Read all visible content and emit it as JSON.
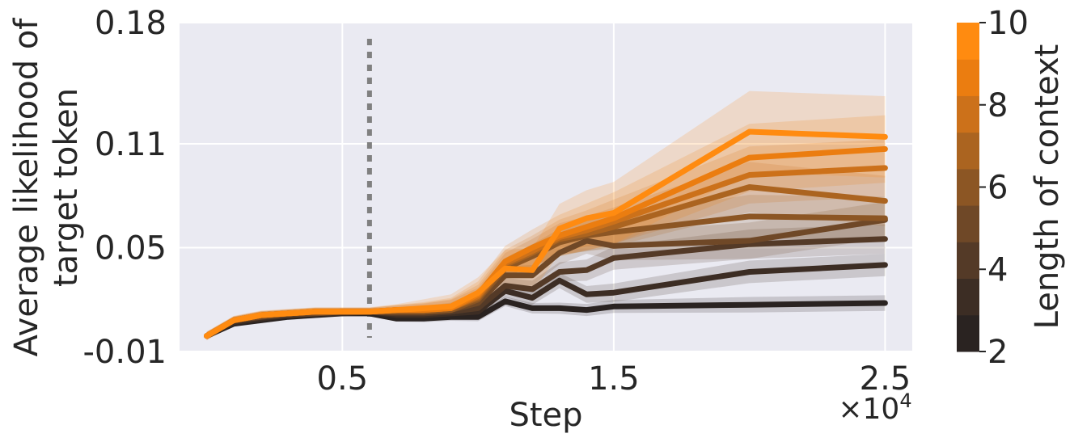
{
  "chart_data": {
    "type": "line",
    "xlabel": "Step",
    "x_offset_label": "×10",
    "x_offset_exponent": "4",
    "ylabel_line1": "Average likelihood of",
    "ylabel_line2": "target token",
    "xlim": [
      -0.1,
      2.6
    ],
    "ylim": [
      -0.01,
      0.18
    ],
    "xticks": [
      0.5,
      1.5,
      2.5
    ],
    "xtick_labels": [
      "0.5",
      "1.5",
      "2.5"
    ],
    "yticks": [
      -0.01,
      0.05,
      0.11,
      0.18
    ],
    "ytick_labels": [
      "-0.01",
      "0.05",
      "0.11",
      "0.18"
    ],
    "vline_x": 0.6,
    "grid": true,
    "background": "#eaeaf2",
    "colorbar": {
      "label": "Length of context",
      "range": [
        2,
        10
      ],
      "ticks": [
        2,
        4,
        6,
        8,
        10
      ],
      "tick_labels": [
        "2",
        "4",
        "6",
        "8",
        "10"
      ],
      "colors": [
        "#2a2321",
        "#3c2d24",
        "#543a27",
        "#6f4827",
        "#8c5624",
        "#ab6420",
        "#cc711a",
        "#eb7d10",
        "#ff8b10"
      ]
    },
    "x": [
      0,
      0.1,
      0.2,
      0.3,
      0.4,
      0.5,
      0.6,
      0.7,
      0.8,
      0.9,
      1.0,
      1.1,
      1.2,
      1.3,
      1.4,
      1.5,
      2.0,
      2.5
    ],
    "series": [
      {
        "context": 2,
        "color": "#2a2321",
        "values": [
          -0.001,
          0.006,
          0.008,
          0.01,
          0.011,
          0.012,
          0.012,
          0.009,
          0.009,
          0.01,
          0.01,
          0.019,
          0.015,
          0.015,
          0.014,
          0.016,
          0.017,
          0.018
        ],
        "band": 0.003
      },
      {
        "context": 3,
        "color": "#3c2d24",
        "values": [
          -0.001,
          0.007,
          0.009,
          0.011,
          0.012,
          0.012,
          0.013,
          0.011,
          0.011,
          0.012,
          0.013,
          0.025,
          0.021,
          0.031,
          0.023,
          0.024,
          0.036,
          0.04
        ],
        "band": 0.005
      },
      {
        "context": 4,
        "color": "#543a27",
        "values": [
          -0.001,
          0.008,
          0.01,
          0.011,
          0.012,
          0.013,
          0.013,
          0.012,
          0.012,
          0.013,
          0.015,
          0.028,
          0.026,
          0.036,
          0.037,
          0.044,
          0.052,
          0.055
        ],
        "band": 0.007
      },
      {
        "context": 5,
        "color": "#6f4827",
        "values": [
          -0.001,
          0.008,
          0.01,
          0.012,
          0.012,
          0.013,
          0.013,
          0.013,
          0.013,
          0.014,
          0.018,
          0.034,
          0.034,
          0.047,
          0.054,
          0.051,
          0.054,
          0.066
        ],
        "band": 0.009
      },
      {
        "context": 6,
        "color": "#8c5624",
        "values": [
          -0.001,
          0.008,
          0.011,
          0.012,
          0.013,
          0.013,
          0.013,
          0.013,
          0.013,
          0.014,
          0.02,
          0.038,
          0.045,
          0.053,
          0.057,
          0.059,
          0.068,
          0.067
        ],
        "band": 0.011
      },
      {
        "context": 7,
        "color": "#ab6420",
        "values": [
          -0.001,
          0.008,
          0.011,
          0.012,
          0.013,
          0.013,
          0.013,
          0.014,
          0.014,
          0.015,
          0.021,
          0.04,
          0.047,
          0.055,
          0.058,
          0.062,
          0.085,
          0.077
        ],
        "band": 0.013
      },
      {
        "context": 8,
        "color": "#cc711a",
        "values": [
          -0.001,
          0.008,
          0.011,
          0.012,
          0.013,
          0.013,
          0.013,
          0.014,
          0.014,
          0.015,
          0.022,
          0.041,
          0.048,
          0.056,
          0.06,
          0.065,
          0.092,
          0.096
        ],
        "band": 0.015
      },
      {
        "context": 9,
        "color": "#eb7d10",
        "values": [
          -0.001,
          0.008,
          0.011,
          0.012,
          0.013,
          0.013,
          0.013,
          0.014,
          0.014,
          0.015,
          0.023,
          0.042,
          0.05,
          0.057,
          0.062,
          0.067,
          0.102,
          0.107
        ],
        "band": 0.018
      },
      {
        "context": 10,
        "color": "#ff8b10",
        "values": [
          -0.001,
          0.008,
          0.011,
          0.012,
          0.013,
          0.013,
          0.013,
          0.014,
          0.015,
          0.016,
          0.024,
          0.038,
          0.037,
          0.061,
          0.067,
          0.07,
          0.117,
          0.114
        ],
        "band": 0.022
      }
    ]
  }
}
